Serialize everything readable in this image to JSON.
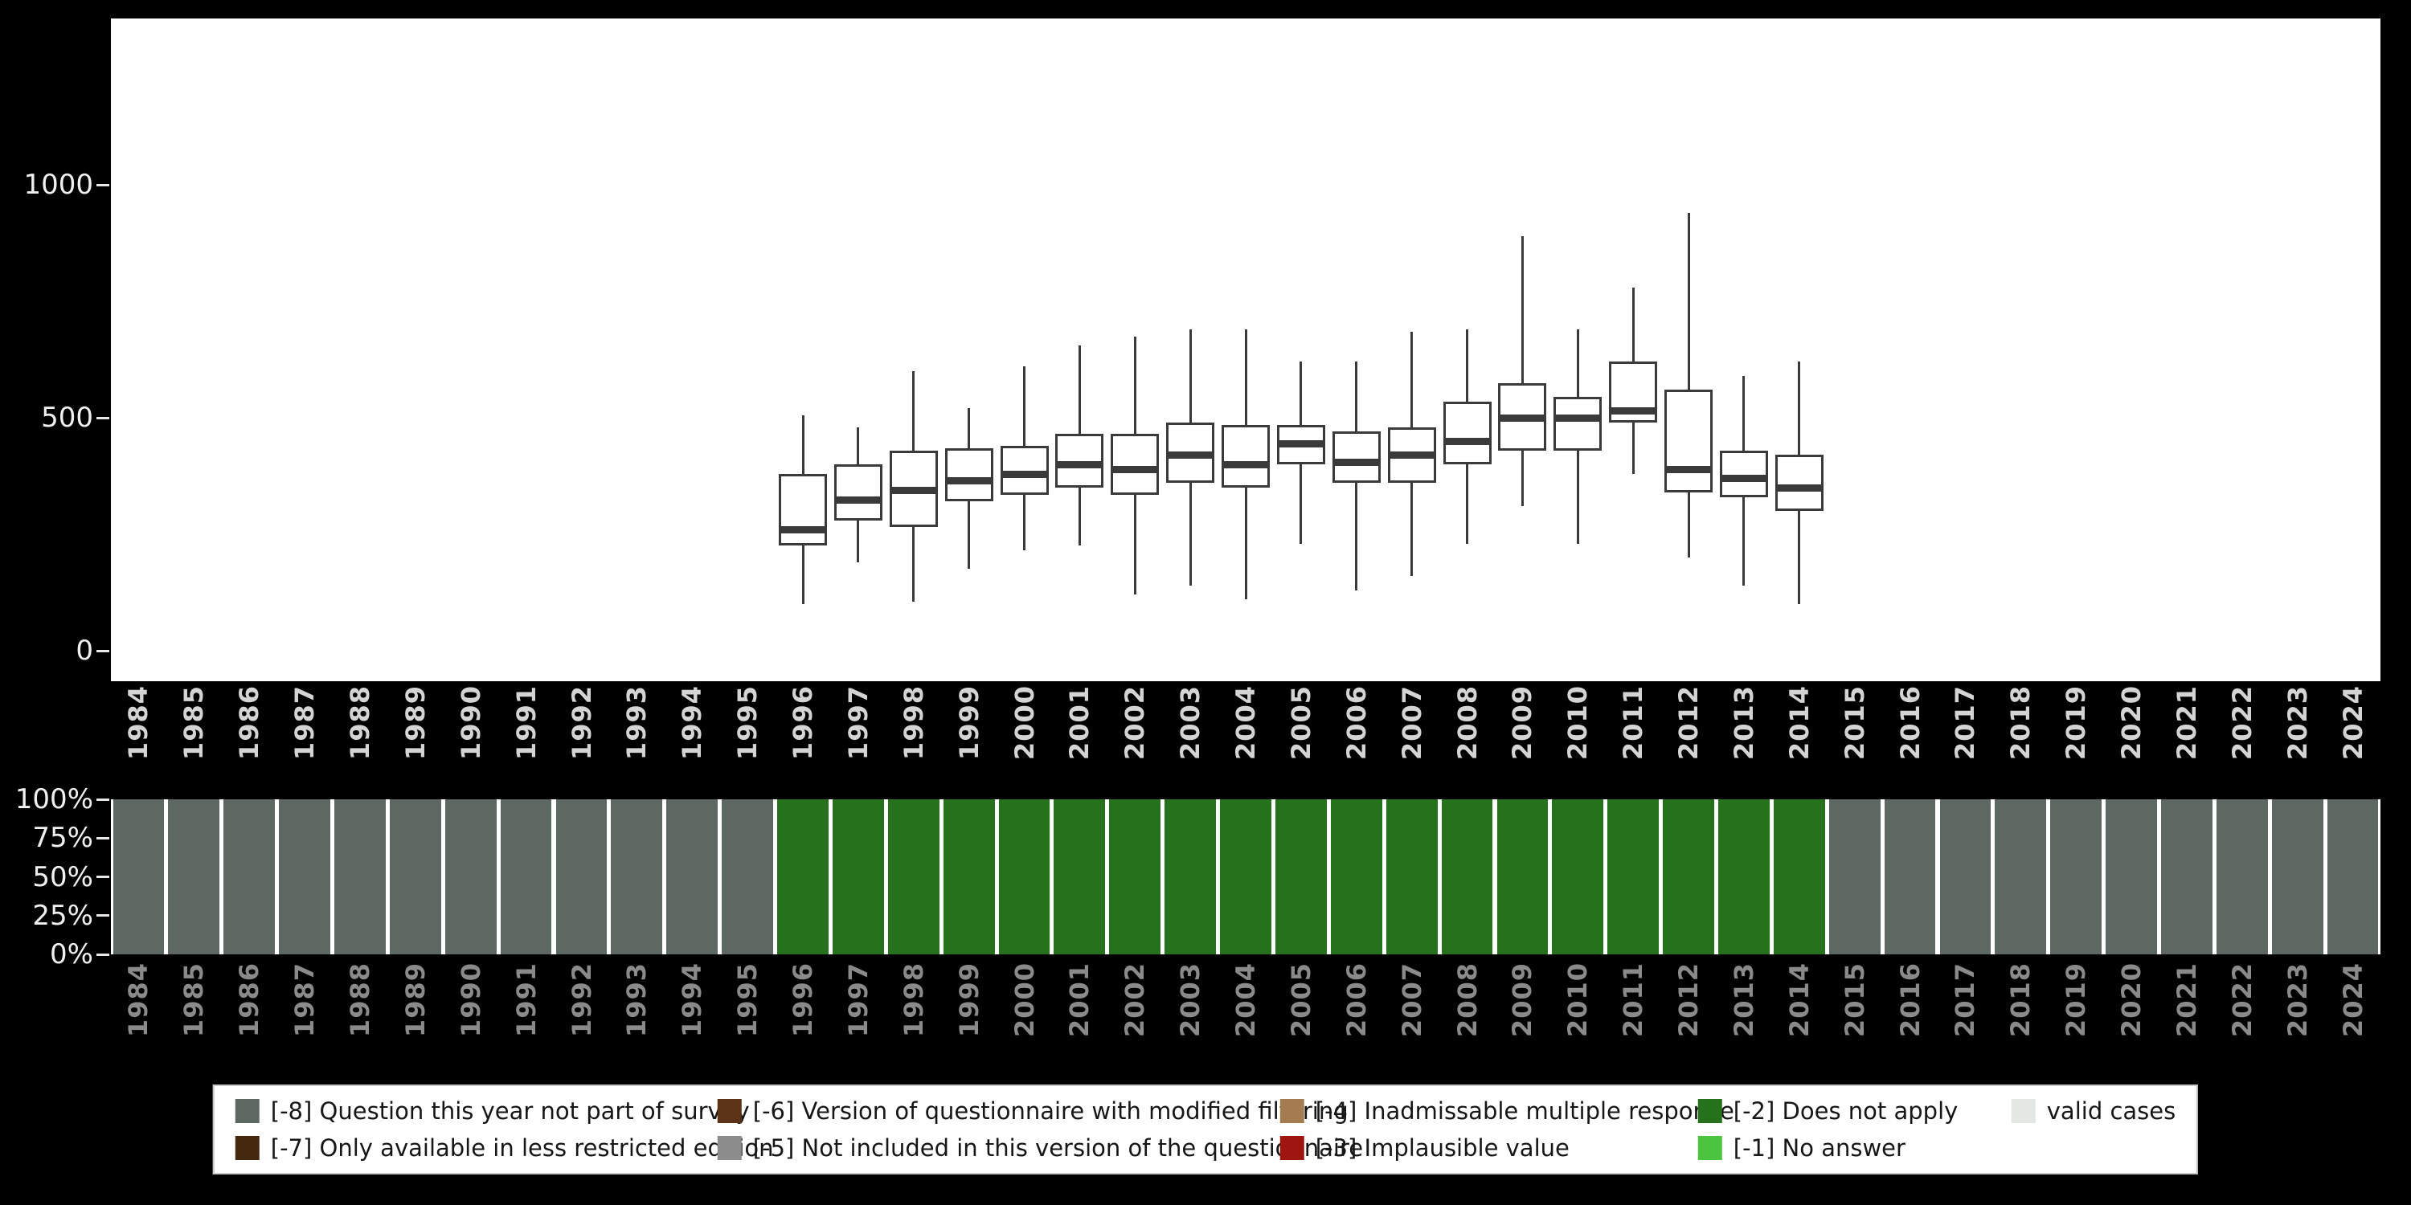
{
  "colors": {
    "background": "#000000",
    "panel": "#ffffff",
    "box_outline": "#3a3a3a",
    "axis_text_primary": "#f0f0f0",
    "x_axis_text_top": "#d4d4d4",
    "x_axis_text_bottom": "#8a8a8a",
    "bar_gray": "#5d6862",
    "bar_green": "#26711b"
  },
  "chart_data": [
    {
      "type": "boxplot",
      "title": "",
      "xlabel": "",
      "ylabel": "",
      "x": [
        "1984",
        "1985",
        "1986",
        "1987",
        "1988",
        "1989",
        "1990",
        "1991",
        "1992",
        "1993",
        "1994",
        "1995",
        "1996",
        "1997",
        "1998",
        "1999",
        "2000",
        "2001",
        "2002",
        "2003",
        "2004",
        "2005",
        "2006",
        "2007",
        "2008",
        "2009",
        "2010",
        "2011",
        "2012",
        "2013",
        "2014",
        "2015",
        "2016",
        "2017",
        "2018",
        "2019",
        "2020",
        "2021",
        "2022",
        "2023",
        "2024"
      ],
      "ylim": [
        0,
        1350
      ],
      "yticks": [
        0,
        500,
        1000
      ],
      "series": [
        {
          "x": "1996",
          "min": 100,
          "q1": 225,
          "median": 260,
          "q3": 380,
          "max": 505
        },
        {
          "x": "1997",
          "min": 190,
          "q1": 280,
          "median": 325,
          "q3": 400,
          "max": 480
        },
        {
          "x": "1998",
          "min": 105,
          "q1": 265,
          "median": 345,
          "q3": 430,
          "max": 600
        },
        {
          "x": "1999",
          "min": 175,
          "q1": 320,
          "median": 365,
          "q3": 435,
          "max": 520
        },
        {
          "x": "2000",
          "min": 215,
          "q1": 335,
          "median": 380,
          "q3": 440,
          "max": 610
        },
        {
          "x": "2001",
          "min": 225,
          "q1": 350,
          "median": 400,
          "q3": 465,
          "max": 655
        },
        {
          "x": "2002",
          "min": 120,
          "q1": 335,
          "median": 390,
          "q3": 465,
          "max": 675
        },
        {
          "x": "2003",
          "min": 140,
          "q1": 360,
          "median": 420,
          "q3": 490,
          "max": 690
        },
        {
          "x": "2004",
          "min": 110,
          "q1": 350,
          "median": 400,
          "q3": 485,
          "max": 690
        },
        {
          "x": "2005",
          "min": 230,
          "q1": 400,
          "median": 445,
          "q3": 485,
          "max": 620
        },
        {
          "x": "2006",
          "min": 130,
          "q1": 360,
          "median": 405,
          "q3": 470,
          "max": 620
        },
        {
          "x": "2007",
          "min": 160,
          "q1": 360,
          "median": 420,
          "q3": 480,
          "max": 685
        },
        {
          "x": "2008",
          "min": 230,
          "q1": 400,
          "median": 450,
          "q3": 535,
          "max": 690
        },
        {
          "x": "2009",
          "min": 310,
          "q1": 430,
          "median": 500,
          "q3": 575,
          "max": 890
        },
        {
          "x": "2010",
          "min": 230,
          "q1": 430,
          "median": 500,
          "q3": 545,
          "max": 690
        },
        {
          "x": "2011",
          "min": 380,
          "q1": 490,
          "median": 515,
          "q3": 620,
          "max": 780
        },
        {
          "x": "2012",
          "min": 200,
          "q1": 340,
          "median": 390,
          "q3": 560,
          "max": 940
        },
        {
          "x": "2013",
          "min": 140,
          "q1": 330,
          "median": 370,
          "q3": 430,
          "max": 590
        },
        {
          "x": "2014",
          "min": 100,
          "q1": 300,
          "median": 350,
          "q3": 420,
          "max": 620
        }
      ]
    },
    {
      "type": "bar",
      "stacked_percent": true,
      "categories": [
        "1984",
        "1985",
        "1986",
        "1987",
        "1988",
        "1989",
        "1990",
        "1991",
        "1992",
        "1993",
        "1994",
        "1995",
        "1996",
        "1997",
        "1998",
        "1999",
        "2000",
        "2001",
        "2002",
        "2003",
        "2004",
        "2005",
        "2006",
        "2007",
        "2008",
        "2009",
        "2010",
        "2011",
        "2012",
        "2013",
        "2014",
        "2015",
        "2016",
        "2017",
        "2018",
        "2019",
        "2020",
        "2021",
        "2022",
        "2023",
        "2024"
      ],
      "yticks": [
        "100%",
        "75%",
        "50%",
        "25%",
        "0%"
      ],
      "series": [
        {
          "name": "[-8] Question this year not part of survey",
          "color": "#5d6862",
          "values": [
            100,
            100,
            100,
            100,
            100,
            100,
            100,
            100,
            100,
            100,
            100,
            100,
            0,
            0,
            0,
            0,
            0,
            0,
            0,
            0,
            0,
            0,
            0,
            0,
            0,
            0,
            0,
            0,
            0,
            0,
            0,
            100,
            100,
            100,
            100,
            100,
            100,
            100,
            100,
            100,
            100
          ]
        },
        {
          "name": "[-2] Does not apply",
          "color": "#26711b",
          "values": [
            0,
            0,
            0,
            0,
            0,
            0,
            0,
            0,
            0,
            0,
            0,
            0,
            100,
            100,
            100,
            100,
            100,
            100,
            100,
            100,
            100,
            100,
            100,
            100,
            100,
            100,
            100,
            100,
            100,
            100,
            100,
            0,
            0,
            0,
            0,
            0,
            0,
            0,
            0,
            0,
            0
          ]
        }
      ]
    }
  ],
  "legend": {
    "rows": [
      [
        {
          "label": "[-8] Question this year not part of survey",
          "color": "#5d6862"
        },
        {
          "label": "[-6] Version of questionnaire with modified filtering",
          "color": "#5c3317"
        },
        {
          "label": "[-4] Inadmissable multiple response",
          "color": "#a57c52"
        },
        {
          "label": "[-2] Does not apply",
          "color": "#26711b"
        },
        {
          "label": "valid cases",
          "color": "#e4e8e4"
        }
      ],
      [
        {
          "label": "[-7] Only available in less restricted edition",
          "color": "#45290e"
        },
        {
          "label": "[-5] Not included in this version of the questionnaire",
          "color": "#8c8c8c"
        },
        {
          "label": "[-3] Implausible value",
          "color": "#9f1510"
        },
        {
          "label": "[-1] No answer",
          "color": "#4cc43f"
        }
      ]
    ]
  }
}
